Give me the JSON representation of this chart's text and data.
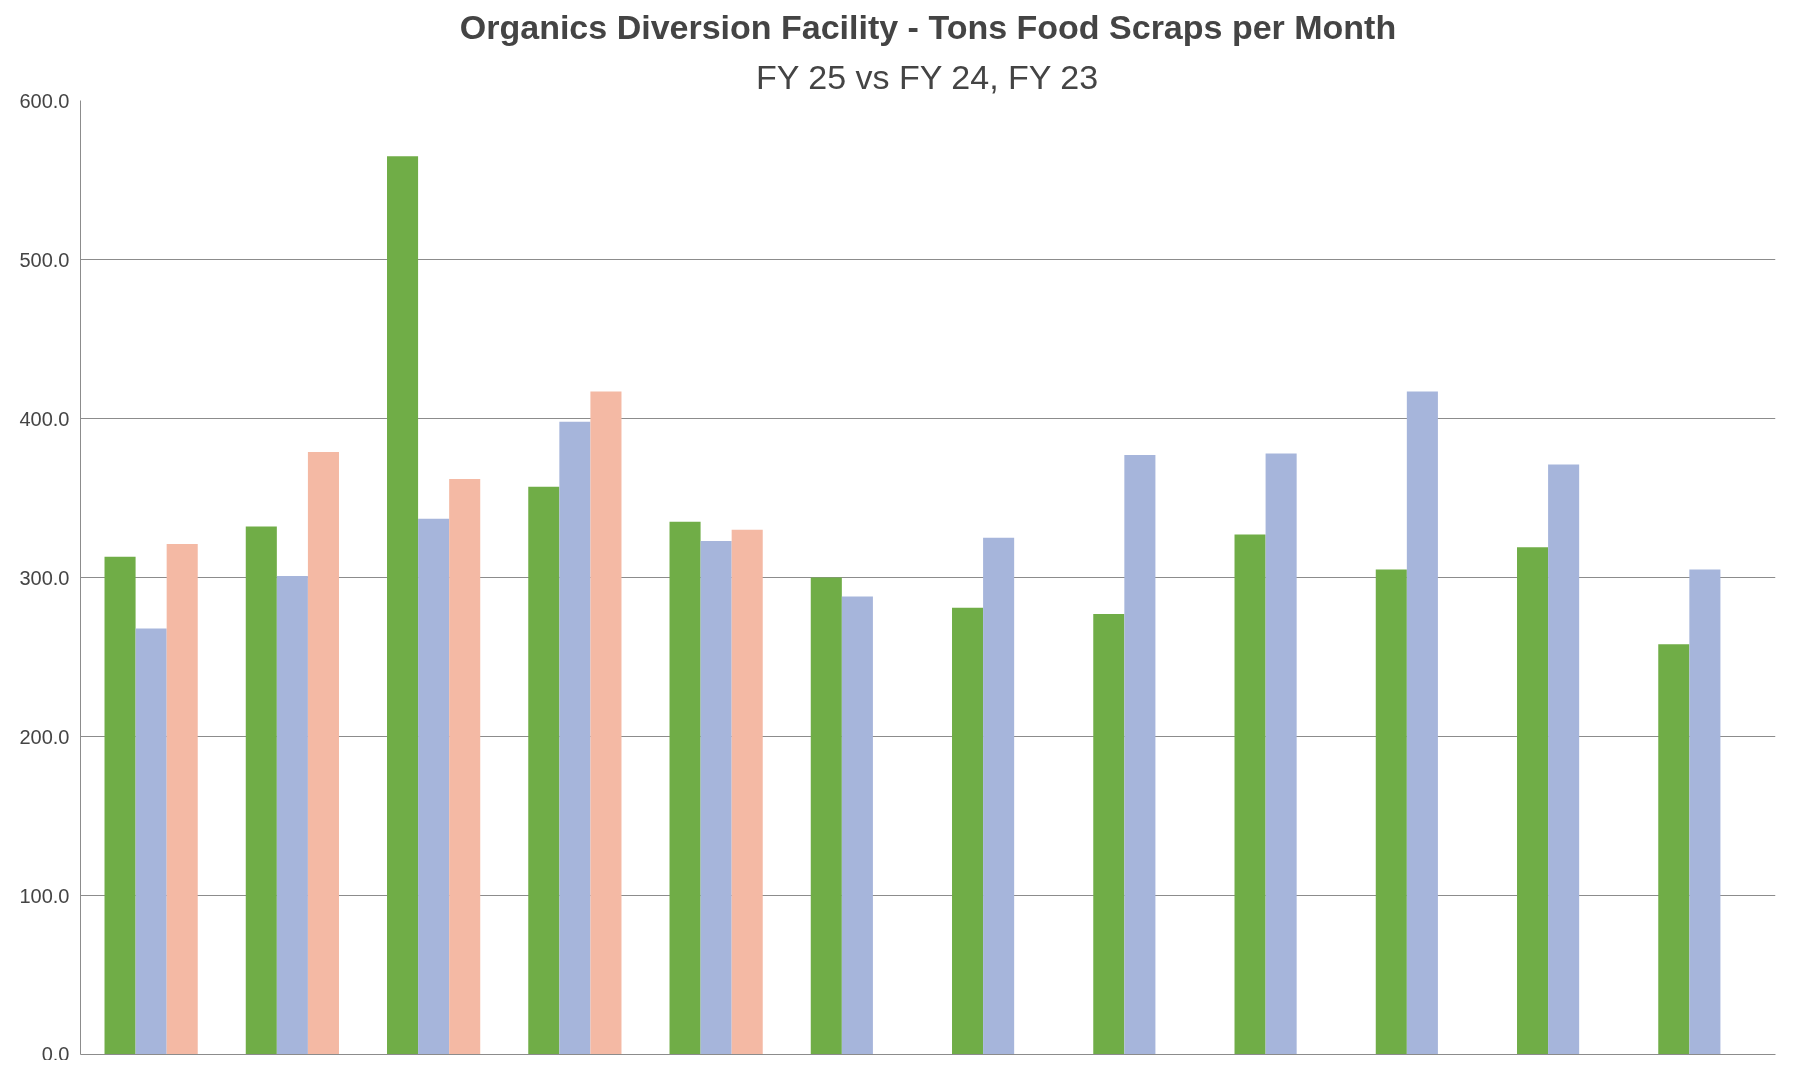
{
  "chart_data": {
    "type": "bar",
    "title": "Organics Diversion Facility - Tons Food Scraps per Month",
    "subtitle": "FY 25 vs FY 24, FY 23",
    "categories": [
      null,
      null,
      null,
      null,
      null,
      null,
      null,
      null,
      null,
      null,
      null,
      null
    ],
    "series": [
      {
        "color": "#70ad47",
        "values": [
          313,
          332,
          565,
          357,
          335,
          300,
          281,
          277,
          327,
          305,
          319,
          258
        ]
      },
      {
        "color": "#a6b5db",
        "values": [
          268,
          301,
          337,
          398,
          323,
          288,
          325,
          377,
          378,
          417,
          371,
          305
        ]
      },
      {
        "color": "#f4b9a4",
        "values": [
          321,
          379,
          362,
          417,
          330,
          null,
          null,
          null,
          null,
          null,
          null,
          null
        ]
      }
    ],
    "ylim": [
      0,
      600
    ],
    "yticks": [
      {
        "value": 0,
        "label": "0.0"
      },
      {
        "value": 100,
        "label": "100.0"
      },
      {
        "value": 200,
        "label": "200.0"
      },
      {
        "value": 300,
        "label": "300.0"
      },
      {
        "value": 400,
        "label": "400.0"
      },
      {
        "value": 500,
        "label": "500.0"
      },
      {
        "value": 600,
        "label": "600.0"
      }
    ],
    "grid": "y",
    "tick_labels": "y"
  }
}
